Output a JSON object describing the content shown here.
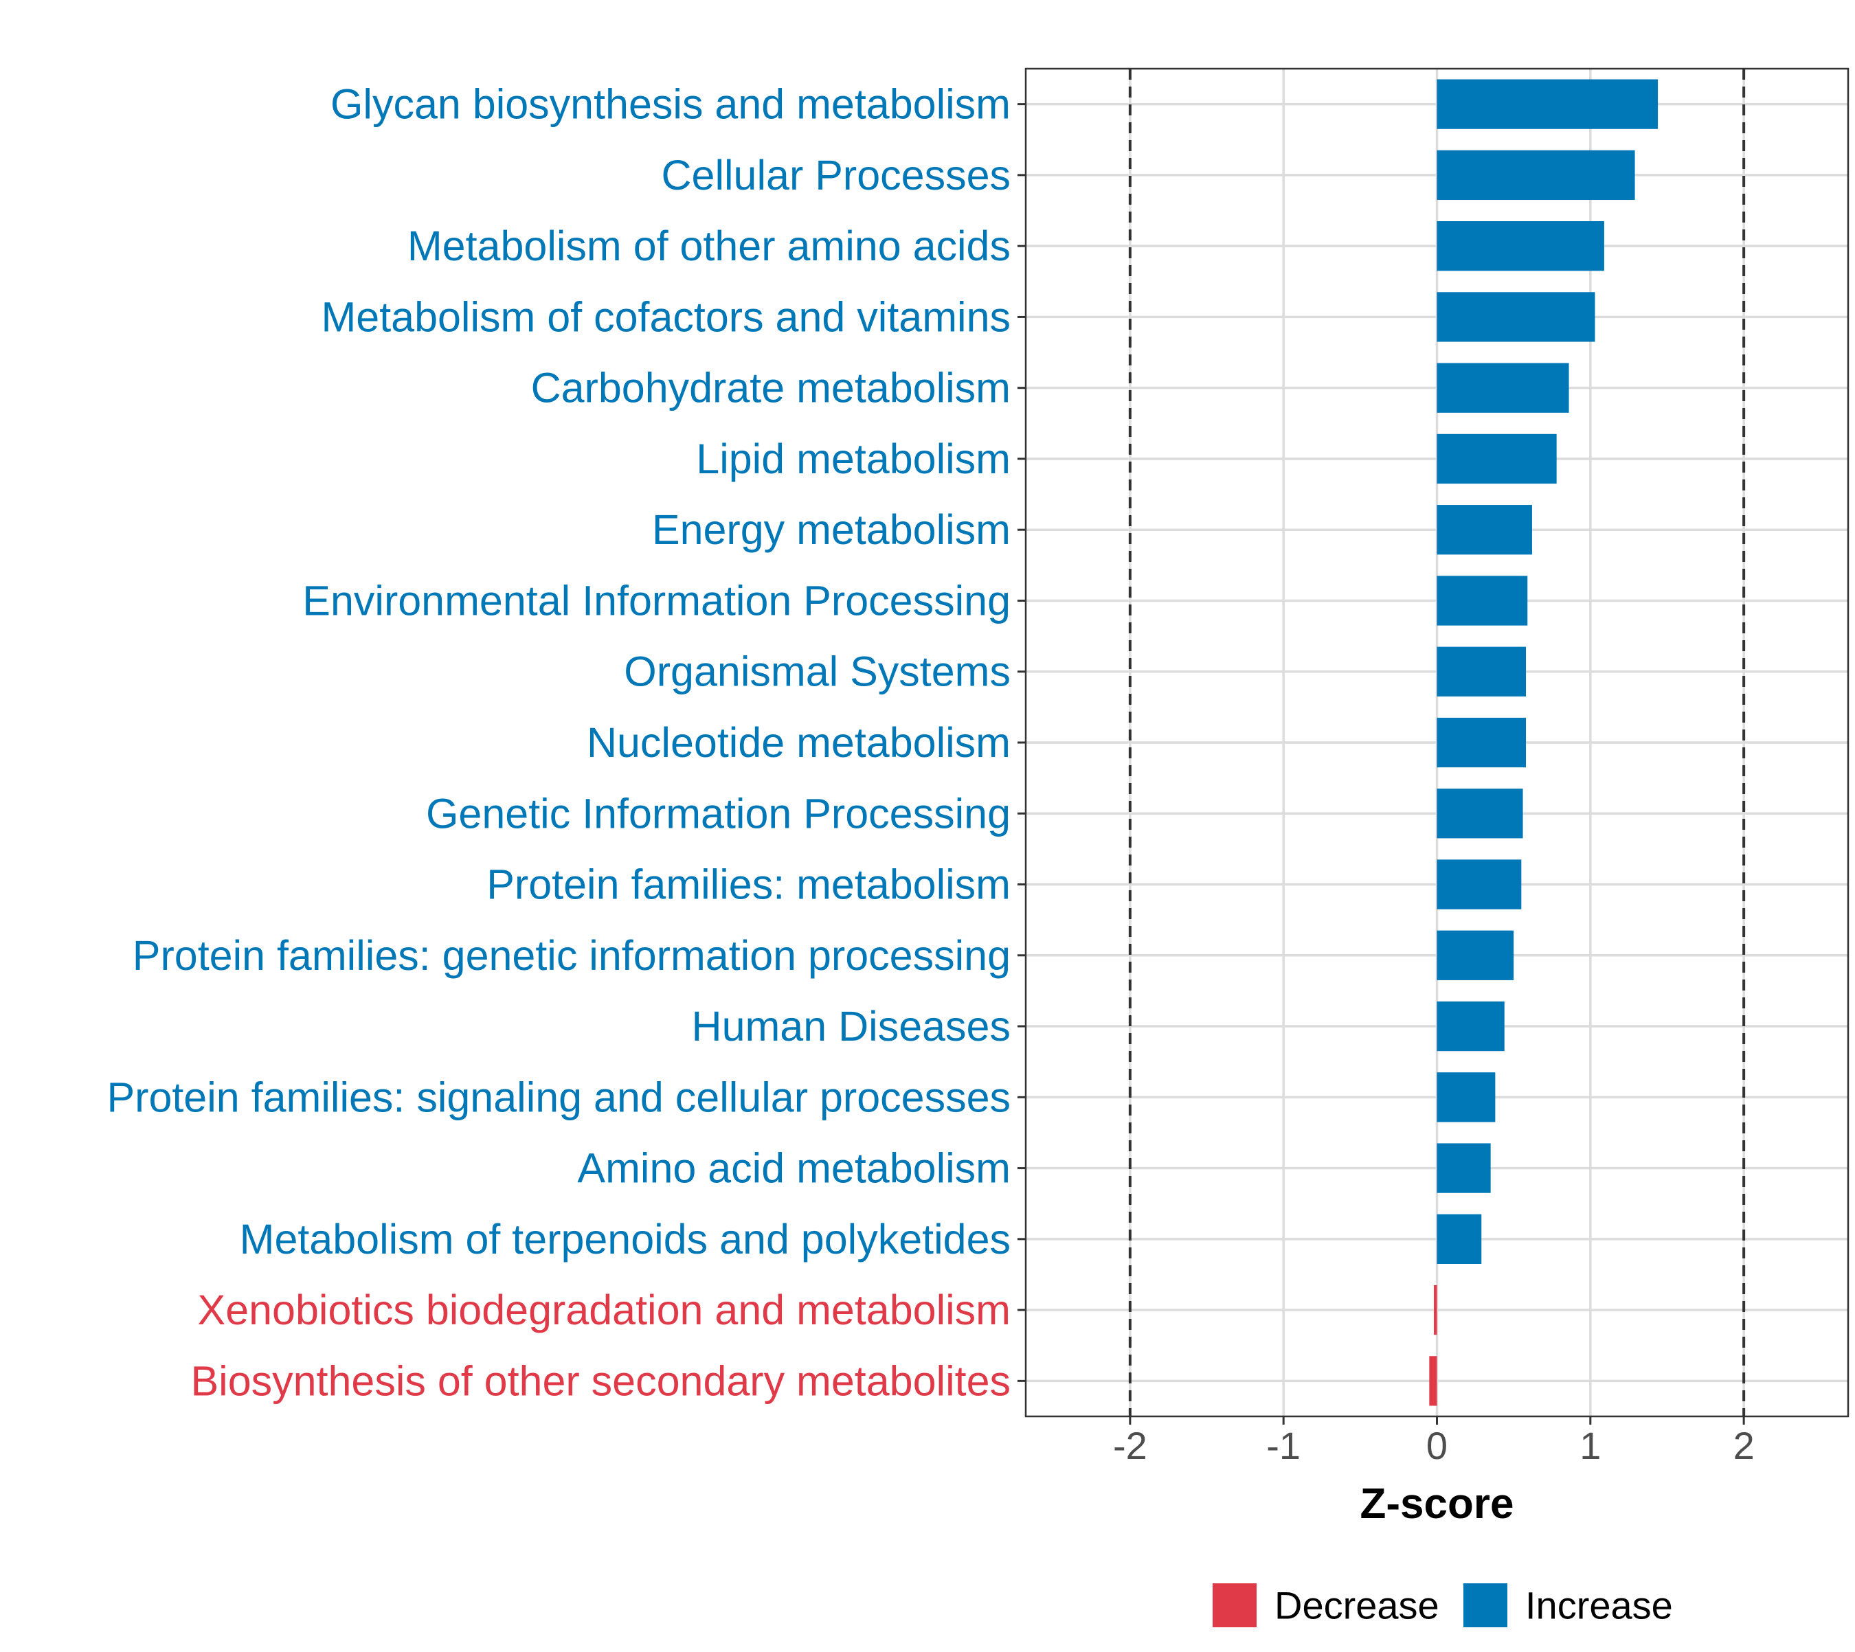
{
  "chart_data": {
    "type": "bar",
    "orientation": "horizontal",
    "categories": [
      "Glycan biosynthesis and metabolism",
      "Cellular Processes",
      "Metabolism of other amino acids",
      "Metabolism of cofactors and vitamins",
      "Carbohydrate metabolism",
      "Lipid metabolism",
      "Energy metabolism",
      "Environmental Information Processing",
      "Organismal Systems",
      "Nucleotide metabolism",
      "Genetic Information Processing",
      "Protein families: metabolism",
      "Protein families: genetic information processing",
      "Human Diseases",
      "Protein families: signaling and cellular processes",
      "Amino acid metabolism",
      "Metabolism of terpenoids and polyketides",
      "Xenobiotics biodegradation and metabolism",
      "Biosynthesis of other secondary metabolites"
    ],
    "values": [
      1.44,
      1.29,
      1.09,
      1.03,
      0.86,
      0.78,
      0.62,
      0.59,
      0.58,
      0.58,
      0.56,
      0.55,
      0.5,
      0.44,
      0.38,
      0.35,
      0.29,
      -0.02,
      -0.05
    ],
    "groups": [
      "Increase",
      "Increase",
      "Increase",
      "Increase",
      "Increase",
      "Increase",
      "Increase",
      "Increase",
      "Increase",
      "Increase",
      "Increase",
      "Increase",
      "Increase",
      "Increase",
      "Increase",
      "Increase",
      "Increase",
      "Decrease",
      "Decrease"
    ],
    "xlabel": "Z-score",
    "ylabel": "",
    "xlim": [
      -2.68,
      2.68
    ],
    "xticks": [
      -2,
      -1,
      0,
      1,
      2
    ],
    "xtick_labels": [
      "-2",
      "-1",
      "0",
      "1",
      "2"
    ],
    "reference_lines": [
      -2,
      2
    ],
    "grid": true,
    "legend": {
      "position": "bottom",
      "entries": [
        {
          "label": "Decrease",
          "color": "#e03a48"
        },
        {
          "label": "Increase",
          "color": "#0077b6"
        }
      ]
    },
    "colors": {
      "Increase": "#0077b6",
      "Decrease": "#e03a48"
    }
  }
}
